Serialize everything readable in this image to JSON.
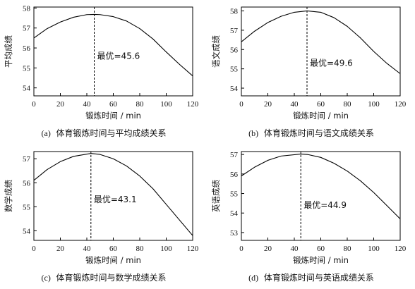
{
  "chart_data": [
    {
      "type": "line",
      "caption_tag": "(a)",
      "caption_text": "体育锻炼时间与平均成绩关系",
      "xlabel": "锻炼时间 / min",
      "ylabel": "平均成绩",
      "xlim": [
        0,
        120
      ],
      "ylim": [
        53.6,
        58.05
      ],
      "xticks": [
        0,
        20,
        40,
        60,
        80,
        100,
        120
      ],
      "yticks": [
        54,
        55,
        56,
        57,
        58
      ],
      "optimum_x": 45.6,
      "annotation": "最优=45.6",
      "annotation_y": 55.6,
      "series": [
        {
          "x": [
            0,
            10,
            20,
            30,
            40,
            45.6,
            50,
            60,
            70,
            80,
            90,
            100,
            110,
            120
          ],
          "y": [
            56.5,
            56.97,
            57.3,
            57.54,
            57.67,
            57.68,
            57.67,
            57.57,
            57.35,
            56.97,
            56.45,
            55.8,
            55.18,
            54.6
          ]
        }
      ]
    },
    {
      "type": "line",
      "caption_tag": "(b)",
      "caption_text": "体育锻炼时间与语文成绩关系",
      "xlabel": "锻炼时间 / min",
      "ylabel": "语文成绩",
      "xlim": [
        0,
        120
      ],
      "ylim": [
        53.6,
        58.2
      ],
      "xticks": [
        0,
        20,
        40,
        60,
        80,
        100,
        120
      ],
      "yticks": [
        54,
        55,
        56,
        57,
        58
      ],
      "optimum_x": 49.6,
      "annotation": "最优=49.6",
      "annotation_y": 55.3,
      "series": [
        {
          "x": [
            0,
            10,
            20,
            30,
            40,
            49.6,
            60,
            70,
            80,
            90,
            100,
            110,
            120
          ],
          "y": [
            56.4,
            56.95,
            57.4,
            57.72,
            57.93,
            58.0,
            57.93,
            57.65,
            57.2,
            56.6,
            55.9,
            55.28,
            54.75
          ]
        }
      ]
    },
    {
      "type": "line",
      "caption_tag": "(c)",
      "caption_text": "体育锻炼时间与数学成绩关系",
      "xlabel": "锻炼时间 / min",
      "ylabel": "数学成绩",
      "xlim": [
        0,
        120
      ],
      "ylim": [
        53.6,
        57.3
      ],
      "xticks": [
        0,
        20,
        40,
        60,
        80,
        100,
        120
      ],
      "yticks": [
        54,
        55,
        56,
        57
      ],
      "optimum_x": 43.1,
      "annotation": "最优=43.1",
      "annotation_y": 55.3,
      "series": [
        {
          "x": [
            0,
            10,
            20,
            30,
            43.1,
            50,
            60,
            70,
            80,
            90,
            100,
            110,
            120
          ],
          "y": [
            56.1,
            56.55,
            56.88,
            57.1,
            57.22,
            57.18,
            57.0,
            56.7,
            56.28,
            55.75,
            55.1,
            54.45,
            53.8
          ]
        }
      ]
    },
    {
      "type": "line",
      "caption_tag": "(d)",
      "caption_text": "体育锻炼时间与英语成绩关系",
      "xlabel": "锻炼时间 / min",
      "ylabel": "英语成绩",
      "xlim": [
        0,
        120
      ],
      "ylim": [
        52.6,
        57.15
      ],
      "xticks": [
        0,
        20,
        40,
        60,
        80,
        100,
        120
      ],
      "yticks": [
        53,
        54,
        55,
        56,
        57
      ],
      "optimum_x": 44.9,
      "annotation": "最优=44.9",
      "annotation_y": 54.4,
      "series": [
        {
          "x": [
            0,
            10,
            20,
            30,
            44.9,
            50,
            60,
            70,
            80,
            90,
            100,
            110,
            120
          ],
          "y": [
            55.9,
            56.35,
            56.7,
            56.92,
            57.02,
            57.0,
            56.85,
            56.55,
            56.15,
            55.65,
            55.05,
            54.38,
            53.7
          ]
        }
      ]
    }
  ]
}
